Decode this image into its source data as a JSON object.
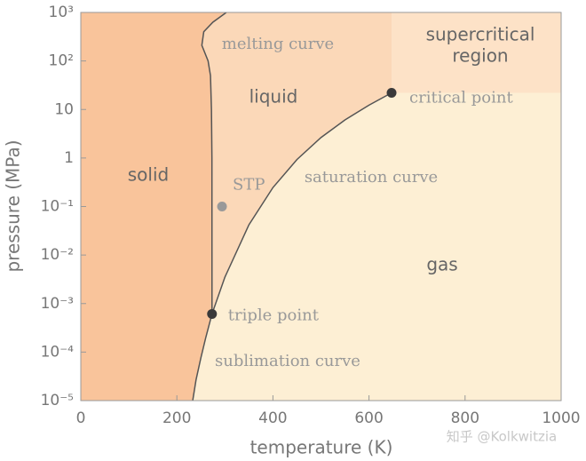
{
  "chart_data": {
    "type": "phase",
    "xlabel": "temperature (K)",
    "ylabel": "pressure (MPa)",
    "xlim": [
      0,
      1000
    ],
    "ylim": [
      1e-05,
      1000
    ],
    "ylog": true,
    "grid": false,
    "xticks": [
      0,
      200,
      400,
      600,
      800,
      1000
    ],
    "yticks": [
      {
        "value": 1e-05,
        "label": "10⁻⁵"
      },
      {
        "value": 0.0001,
        "label": "10⁻⁴"
      },
      {
        "value": 0.001,
        "label": "10⁻³"
      },
      {
        "value": 0.01,
        "label": "10⁻²"
      },
      {
        "value": 0.1,
        "label": "10⁻¹"
      },
      1,
      10,
      {
        "value": 100,
        "label": "10²"
      },
      {
        "value": 1000,
        "label": "10³"
      }
    ],
    "series": [
      {
        "name": "melting curve",
        "color": "#555555",
        "x": [
          273.16,
          273,
          272,
          270,
          265,
          252,
          256,
          275,
          303
        ],
        "values": [
          0.000611,
          1,
          10,
          50,
          100,
          210,
          400,
          630,
          1000
        ]
      },
      {
        "name": "saturation curve",
        "color": "#555555",
        "x": [
          273.16,
          300,
          350,
          400,
          450,
          500,
          550,
          600,
          647
        ],
        "values": [
          0.000611,
          0.0035,
          0.042,
          0.246,
          0.93,
          2.64,
          6.1,
          12.3,
          22.06
        ]
      },
      {
        "name": "sublimation curve",
        "color": "#555555",
        "x": [
          273.16,
          260,
          250,
          240,
          233
        ],
        "values": [
          0.000611,
          0.000196,
          7.6e-05,
          2.7e-05,
          1e-05
        ]
      }
    ],
    "points": [
      {
        "name": "triple point",
        "x": 273.16,
        "y": 0.000611,
        "color": "#3a3a3a"
      },
      {
        "name": "critical point",
        "x": 647,
        "y": 22.06,
        "color": "#3a3a3a"
      },
      {
        "name": "STP",
        "x": 294,
        "y": 0.1,
        "color": "#999999"
      }
    ],
    "regions": [
      {
        "lines": [
          "solid"
        ],
        "color": "#f9c49b"
      },
      {
        "lines": [
          "liquid"
        ],
        "color": "#fbd8b8"
      },
      {
        "lines": [
          "gas"
        ],
        "color": "#fdefd4"
      },
      {
        "lines": [
          "supercritical",
          "region"
        ],
        "color": "#fde2c7"
      }
    ],
    "watermark": "知乎 @Kolkwitzia"
  }
}
